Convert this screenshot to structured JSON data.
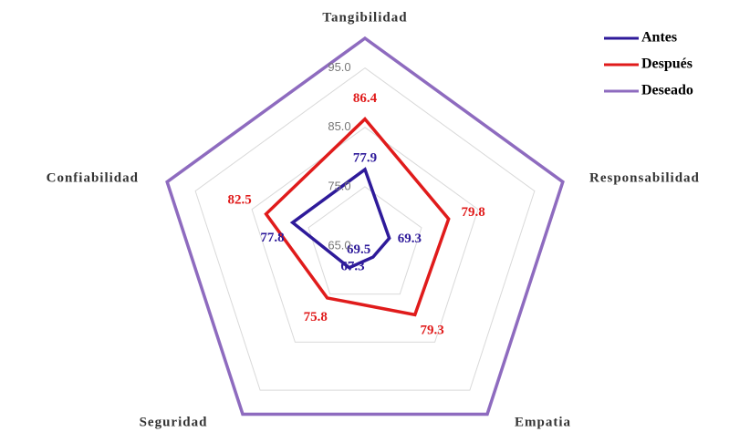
{
  "chart_data": {
    "type": "radar",
    "categories": [
      "Tangibilidad",
      "Responsabilidad",
      "Empatia",
      "Seguridad",
      "Confiabilidad"
    ],
    "series": [
      {
        "name": "Antes",
        "color": "#2e1a9a",
        "values": [
          77.9,
          69.3,
          67.3,
          69.5,
          77.8
        ]
      },
      {
        "name": "Después",
        "color": "#e01b1b",
        "values": [
          86.4,
          79.8,
          79.3,
          75.8,
          82.5
        ]
      },
      {
        "name": "Deseado",
        "color": "#8e6bbf",
        "values": [
          100,
          100,
          100,
          100,
          100
        ]
      }
    ],
    "data_labels": [
      "Antes",
      "Después"
    ],
    "ylim": [
      65,
      100
    ],
    "yticks": [
      {
        "value": 65,
        "label": "65.0"
      },
      {
        "value": 75,
        "label": "75.0"
      },
      {
        "value": 85,
        "label": "85.0"
      },
      {
        "value": 95,
        "label": "95.0"
      }
    ],
    "grid": true,
    "legend": "top-right"
  }
}
